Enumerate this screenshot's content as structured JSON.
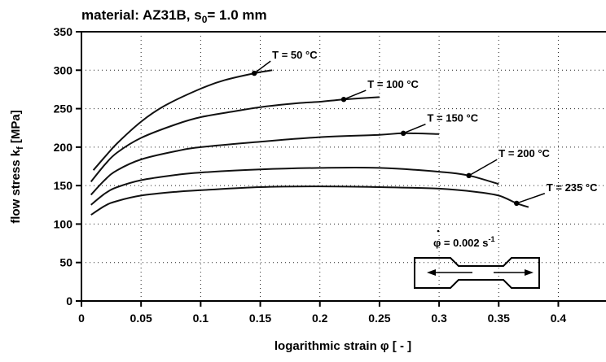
{
  "chart_data": {
    "type": "line",
    "title": "material: AZ31B, s",
    "title_sub": "0",
    "title_tail": "= 1.0 mm",
    "xlabel": "logarithmic strain  φ  [ - ]",
    "ylabel_main": "flow stress  k",
    "ylabel_sub": "f",
    "ylabel_tail": "  [MPa]",
    "xlim": [
      0,
      0.44
    ],
    "ylim": [
      0,
      350
    ],
    "xticks": [
      "0",
      "0.05",
      "0.1",
      "0.15",
      "0.2",
      "0.25",
      "0.3",
      "0.35",
      "0.4"
    ],
    "yticks": [
      "0",
      "50",
      "100",
      "150",
      "200",
      "250",
      "300",
      "350"
    ],
    "grid": "dotted",
    "legend": "none",
    "annotation_rate_text": "φ = 0.002 s",
    "annotation_rate_exp": "-1",
    "series": [
      {
        "name": "T =  50 °C",
        "x": [
          0.01,
          0.02,
          0.03,
          0.05,
          0.07,
          0.1,
          0.12,
          0.145,
          0.16
        ],
        "y": [
          170,
          188,
          205,
          233,
          254,
          276,
          287,
          296,
          300
        ]
      },
      {
        "name": "T = 100 °C",
        "x": [
          0.008,
          0.02,
          0.03,
          0.05,
          0.08,
          0.1,
          0.13,
          0.15,
          0.18,
          0.2,
          0.22,
          0.25
        ],
        "y": [
          155,
          178,
          193,
          212,
          230,
          239,
          247,
          252,
          257,
          259,
          262,
          265
        ]
      },
      {
        "name": "T = 150 °C",
        "x": [
          0.008,
          0.02,
          0.03,
          0.05,
          0.08,
          0.1,
          0.15,
          0.2,
          0.25,
          0.27,
          0.3
        ],
        "y": [
          138,
          158,
          170,
          184,
          195,
          200,
          207,
          213,
          216,
          218,
          217
        ]
      },
      {
        "name": "T = 200 °C",
        "x": [
          0.008,
          0.02,
          0.03,
          0.05,
          0.08,
          0.1,
          0.15,
          0.2,
          0.25,
          0.3,
          0.325,
          0.35
        ],
        "y": [
          125,
          140,
          148,
          157,
          164,
          167,
          171,
          173,
          173,
          168,
          163,
          152
        ]
      },
      {
        "name": "T = 235 °C",
        "x": [
          0.008,
          0.02,
          0.03,
          0.05,
          0.08,
          0.1,
          0.15,
          0.2,
          0.25,
          0.3,
          0.33,
          0.35,
          0.365,
          0.375
        ],
        "y": [
          112,
          124,
          130,
          137,
          142,
          144,
          148,
          149,
          148,
          146,
          142,
          137,
          127,
          122
        ]
      }
    ],
    "series_label_x": [
      0.16,
      0.24,
      0.29,
      0.35,
      0.39
    ],
    "series_label_y": [
      315,
      277,
      233,
      187,
      143
    ],
    "series_marker_x": [
      0.145,
      0.22,
      0.27,
      0.325,
      0.365
    ],
    "series_marker_y": [
      296,
      262,
      218,
      163,
      127
    ]
  }
}
